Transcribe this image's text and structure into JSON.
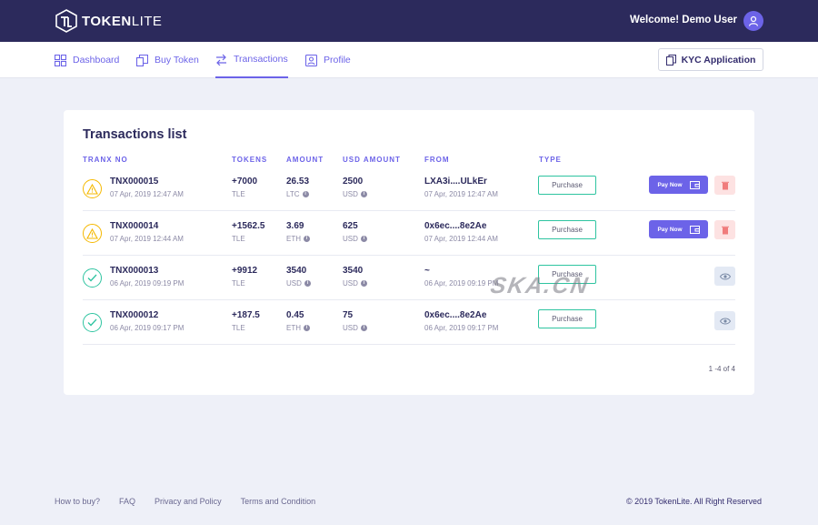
{
  "brand": {
    "name_bold": "TOKEN",
    "name_light": "LITE"
  },
  "header": {
    "welcome": "Welcome! Demo User"
  },
  "nav": {
    "items": [
      {
        "label": "Dashboard"
      },
      {
        "label": "Buy Token"
      },
      {
        "label": "Transactions"
      },
      {
        "label": "Profile"
      }
    ],
    "active": "Transactions",
    "kyc_label": "KYC Application"
  },
  "card": {
    "title": "Transactions list",
    "columns": [
      "TRANX NO",
      "TOKENS",
      "AMOUNT",
      "USD AMOUNT",
      "FROM",
      "TYPE"
    ],
    "rows": [
      {
        "status": "pending",
        "tranx": "TNX000015",
        "date": "07 Apr, 2019 12:47 AM",
        "tokens": "+7000",
        "token_unit": "TLE",
        "amount": "26.53",
        "amount_unit": "LTC",
        "usd": "2500",
        "usd_unit": "USD",
        "from": "LXA3i....ULkEr",
        "from_date": "07 Apr, 2019 12:47 AM",
        "type": "Purchase",
        "pay_label": "Pay Now"
      },
      {
        "status": "pending",
        "tranx": "TNX000014",
        "date": "07 Apr, 2019 12:44 AM",
        "tokens": "+1562.5",
        "token_unit": "TLE",
        "amount": "3.69",
        "amount_unit": "ETH",
        "usd": "625",
        "usd_unit": "USD",
        "from": "0x6ec....8e2Ae",
        "from_date": "07 Apr, 2019 12:44 AM",
        "type": "Purchase",
        "pay_label": "Pay Now"
      },
      {
        "status": "success",
        "tranx": "TNX000013",
        "date": "06 Apr, 2019 09:19 PM",
        "tokens": "+9912",
        "token_unit": "TLE",
        "amount": "3540",
        "amount_unit": "USD",
        "usd": "3540",
        "usd_unit": "USD",
        "from": "~",
        "from_date": "06 Apr, 2019 09:19 PM",
        "type": "Purchase"
      },
      {
        "status": "success",
        "tranx": "TNX000012",
        "date": "06 Apr, 2019 09:17 PM",
        "tokens": "+187.5",
        "token_unit": "TLE",
        "amount": "0.45",
        "amount_unit": "ETH",
        "usd": "75",
        "usd_unit": "USD",
        "from": "0x6ec....8e2Ae",
        "from_date": "06 Apr, 2019 09:17 PM",
        "type": "Purchase"
      }
    ],
    "pagination": "1 -4 of 4"
  },
  "watermark": "SKA.CN",
  "footer": {
    "links": [
      "How to buy?",
      "FAQ",
      "Privacy and Policy",
      "Terms and Condition"
    ],
    "copyright": "© 2019 TokenLite. All Right Reserved"
  },
  "colors": {
    "primary": "#6c63e8",
    "header_bg": "#2c2a5c",
    "success": "#2ec4a0",
    "warning": "#f5b800",
    "page_bg": "#eef0f8"
  }
}
